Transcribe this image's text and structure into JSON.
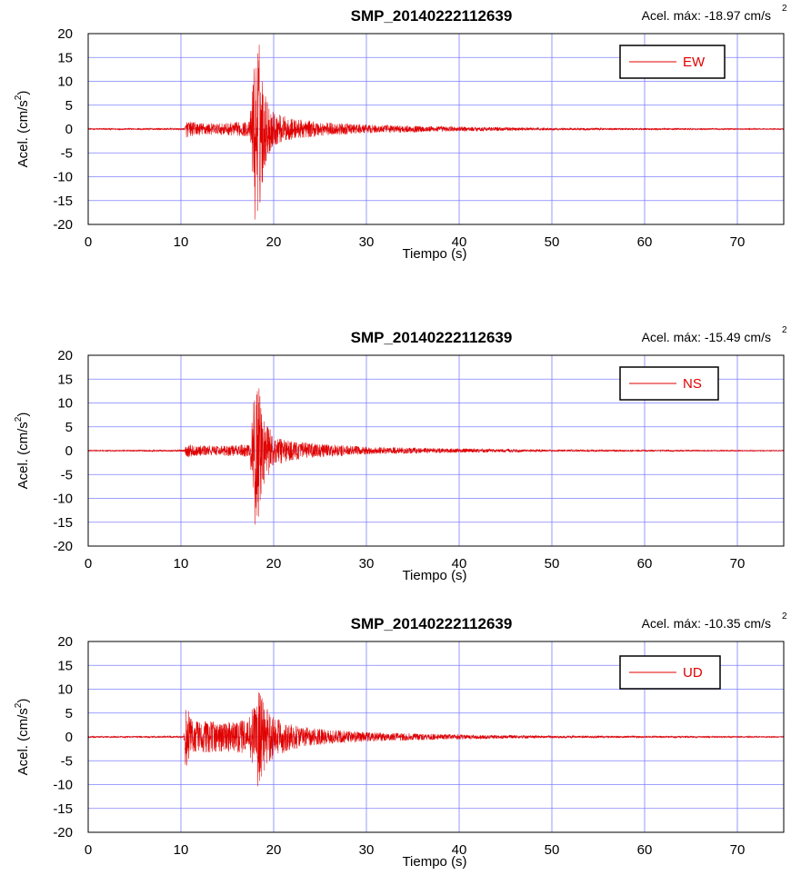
{
  "colors": {
    "signal": "#e00000",
    "grid": "#8080ff",
    "frame": "#000000",
    "legend_text": "#e00000"
  },
  "chart_data": [
    {
      "type": "line",
      "title": "SMP_20140222112639",
      "peak_label": "Acel. máx: -18.97 cm/s",
      "peak_label_sup": "2",
      "xlabel": "Tiempo (s)",
      "ylabel": "Acel. (cm/s",
      "ylabel_sup": "2",
      "ylabel_close": ")",
      "xlim": [
        0,
        75
      ],
      "ylim": [
        -20,
        20
      ],
      "xticks": [
        "0",
        "10",
        "20",
        "30",
        "40",
        "50",
        "60",
        "70"
      ],
      "yticks": [
        "20",
        "15",
        "10",
        "5",
        "0",
        "-5",
        "-10",
        "-15",
        "-20"
      ],
      "grid": true,
      "legend_position": "top-right",
      "series": [
        {
          "name": "EW",
          "envelope": {
            "x": [
              0,
              10.4,
              10.6,
              11.5,
              14,
              17.4,
              17.9,
              18.4,
              19,
              20,
              22,
              25,
              30,
              40,
              50,
              75
            ],
            "amp": [
              0.15,
              0.2,
              1.8,
              1.4,
              1.2,
              1.6,
              14,
              19,
              8,
              3.5,
              2.2,
              1.5,
              0.9,
              0.5,
              0.25,
              0.12
            ]
          },
          "peak": {
            "x": 18.0,
            "y": -18.97
          }
        }
      ]
    },
    {
      "type": "line",
      "title": "SMP_20140222112639",
      "peak_label": "Acel. máx: -15.49 cm/s",
      "peak_label_sup": "2",
      "xlabel": "Tiempo (s)",
      "ylabel": "Acel. (cm/s",
      "ylabel_sup": "2",
      "ylabel_close": ")",
      "xlim": [
        0,
        75
      ],
      "ylim": [
        -20,
        20
      ],
      "xticks": [
        "0",
        "10",
        "20",
        "30",
        "40",
        "50",
        "60",
        "70"
      ],
      "yticks": [
        "20",
        "15",
        "10",
        "5",
        "0",
        "-5",
        "-10",
        "-15",
        "-20"
      ],
      "grid": true,
      "legend_position": "top-right",
      "series": [
        {
          "name": "NS",
          "envelope": {
            "x": [
              0,
              10.4,
              10.6,
              11.5,
              14,
              17.4,
              17.9,
              18.3,
              19,
              20,
              22,
              25,
              30,
              40,
              50,
              75
            ],
            "amp": [
              0.12,
              0.18,
              1.4,
              1.1,
              1.0,
              1.3,
              12,
              15.5,
              7,
              3.2,
              2.0,
              1.4,
              0.8,
              0.45,
              0.22,
              0.1
            ]
          },
          "peak": {
            "x": 18.0,
            "y": -15.49
          }
        }
      ]
    },
    {
      "type": "line",
      "title": "SMP_20140222112639",
      "peak_label": "Acel. máx: -10.35 cm/s",
      "peak_label_sup": "2",
      "xlabel": "Tiempo (s)",
      "ylabel": "Acel. (cm/s",
      "ylabel_sup": "2",
      "ylabel_close": ")",
      "xlim": [
        0,
        75
      ],
      "ylim": [
        -20,
        20
      ],
      "xticks": [
        "0",
        "10",
        "20",
        "30",
        "40",
        "50",
        "60",
        "70"
      ],
      "yticks": [
        "20",
        "15",
        "10",
        "5",
        "0",
        "-5",
        "-10",
        "-15",
        "-20"
      ],
      "grid": true,
      "legend_position": "top-right",
      "series": [
        {
          "name": "UD",
          "envelope": {
            "x": [
              0,
              10.3,
              10.5,
              11,
              12,
              15,
              17.3,
              17.8,
              18.4,
              19.2,
              20,
              22,
              25,
              30,
              40,
              50,
              75
            ],
            "amp": [
              0.15,
              0.2,
              7.5,
              4.2,
              3.4,
              3.2,
              3.6,
              8,
              9.8,
              6.5,
              4.2,
              2.6,
              1.7,
              1.0,
              0.5,
              0.25,
              0.12
            ]
          },
          "peak": {
            "x": 18.3,
            "y": -10.35
          }
        }
      ]
    }
  ]
}
